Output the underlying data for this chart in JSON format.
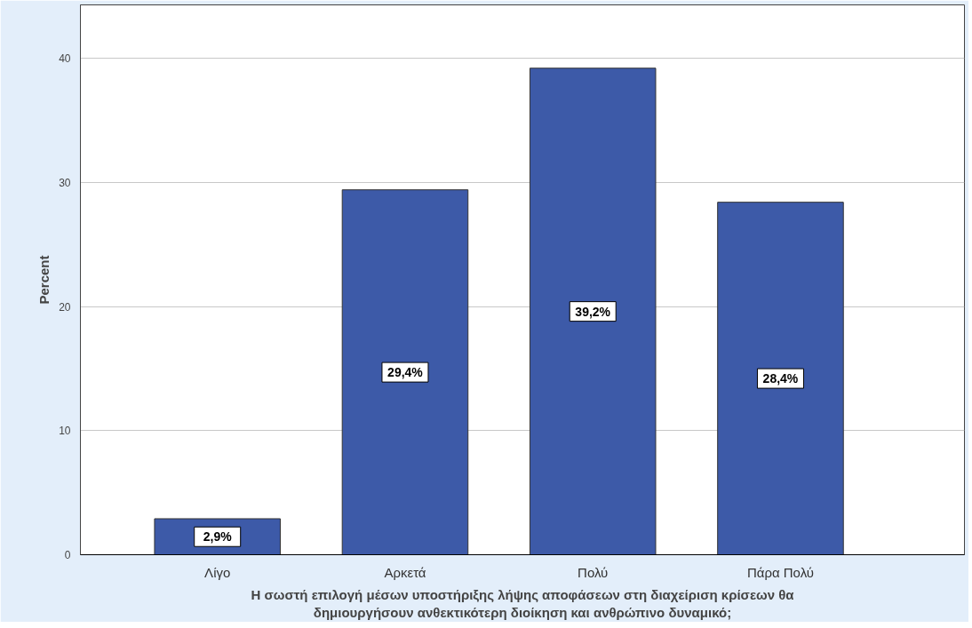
{
  "chart_data": {
    "type": "bar",
    "categories": [
      "Λίγο",
      "Αρκετά",
      "Πολύ",
      "Πάρα Πολύ"
    ],
    "values": [
      2.9,
      29.4,
      39.2,
      28.4
    ],
    "value_labels": [
      "2,9%",
      "29,4%",
      "39,2%",
      "28,4%"
    ],
    "color": "#3d5aa8",
    "xlabel": "Η σωστή επιλογή μέσων υποστήριξης λήψης αποφάσεων στη διαχείριση κρίσεων θα δημιουργήσουν ανθεκτικότερη διοίκηση και ανθρώπινο δυναμικό;",
    "ylabel": "Percent",
    "ylim": [
      0,
      44.3
    ],
    "yticks": [
      0,
      10,
      20,
      30,
      40
    ],
    "grid": "y"
  }
}
